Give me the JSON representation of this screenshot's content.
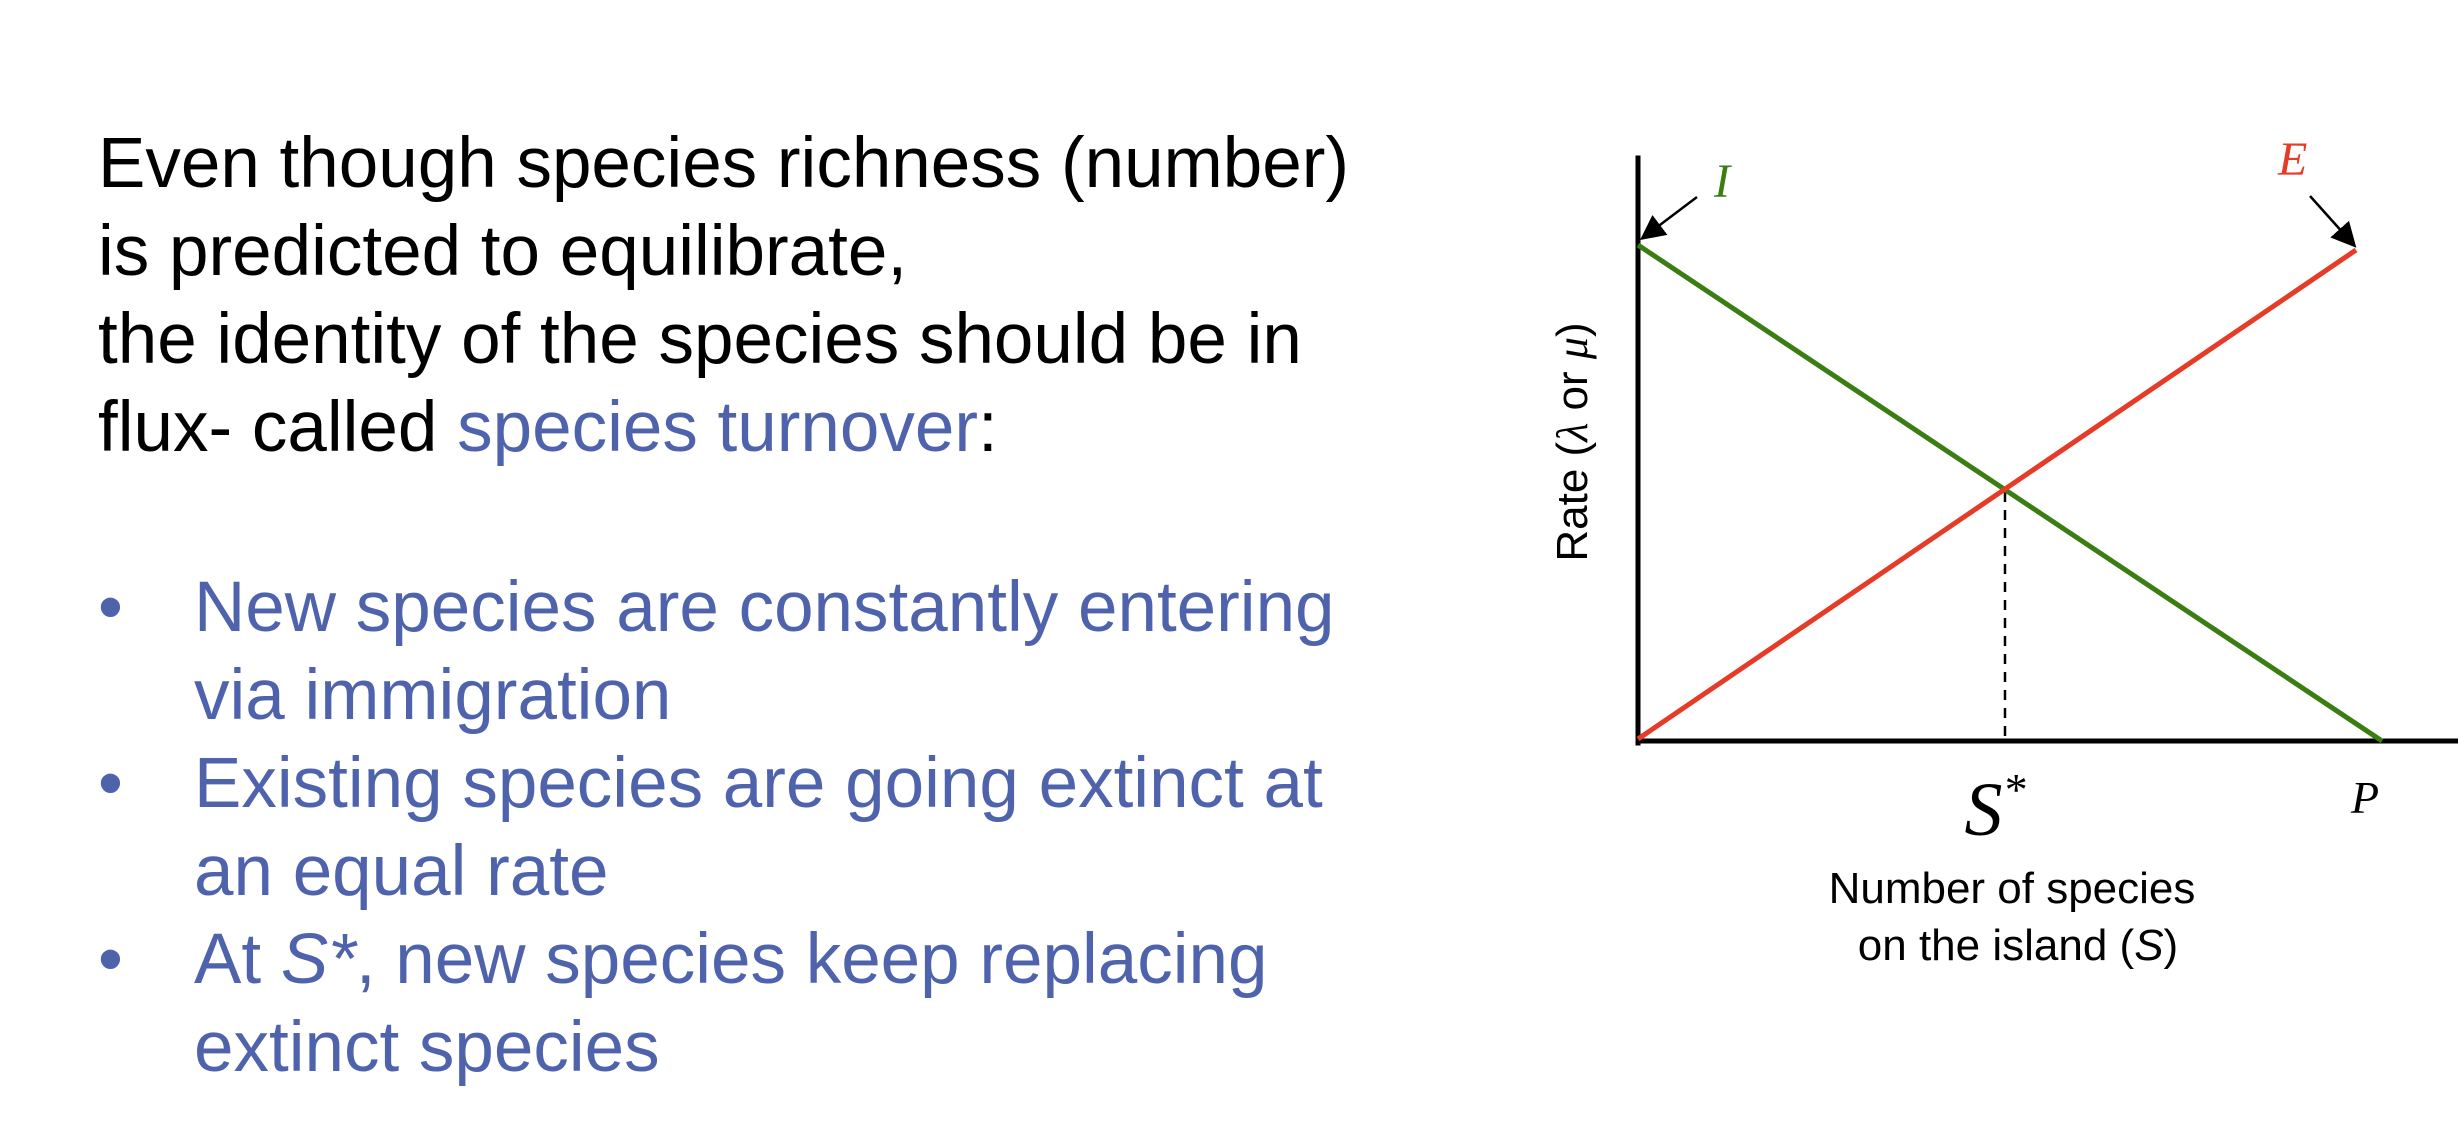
{
  "text": {
    "intro_lines": [
      "Even though species richness (number)",
      "is predicted to equilibrate,",
      "the identity of the species should be in"
    ],
    "intro_last_prefix": "flux- called ",
    "intro_last_highlight": "species turnover",
    "intro_last_suffix": ":",
    "bullet_marker": "•",
    "bullets": [
      {
        "lines": [
          "New species are constantly entering",
          "via immigration"
        ]
      },
      {
        "lines": [
          "Existing species are going extinct at",
          "an equal rate"
        ]
      }
    ],
    "bullet3_prefix": "At ",
    "bullet3_symbol": "S*",
    "bullet3_line1_rest": ", new species keep replacing",
    "bullet3_line2": "extinct species"
  },
  "diagram": {
    "colors": {
      "immigration": "#3a7d12",
      "extinction": "#e63b27",
      "axis": "#000000",
      "text_accent": "#4f63ad"
    },
    "ylabel_prefix": "Rate (",
    "ylabel_lambda": "λ",
    "ylabel_or": " or ",
    "ylabel_mu": "μ",
    "ylabel_suffix": ")",
    "label_I": "I",
    "label_E": "E",
    "label_S": "S",
    "label_star": "*",
    "label_P": "P",
    "xlabel_line1": "Number of species",
    "xlabel_line2_prefix": "on the island (",
    "xlabel_line2_symbol": "S",
    "xlabel_line2_suffix": ")"
  }
}
